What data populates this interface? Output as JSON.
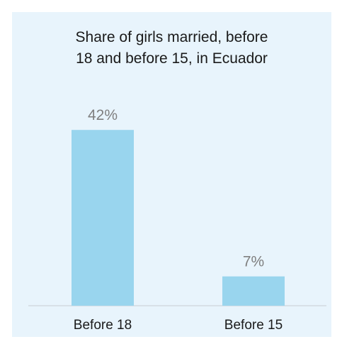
{
  "chart_data": {
    "type": "bar",
    "title_lines": [
      "Share of girls married, before",
      "18 and before 15, in Ecuador"
    ],
    "categories": [
      "Before 18",
      "Before 15"
    ],
    "values": [
      42,
      7
    ],
    "value_labels": [
      "42%",
      "7%"
    ],
    "unit": "%",
    "ylim": [
      0,
      50
    ],
    "grid": false,
    "legend": "none",
    "bar_color": "#99d5ee",
    "label_color": "#7f7f7f",
    "background_color": "#e8f4fc"
  }
}
